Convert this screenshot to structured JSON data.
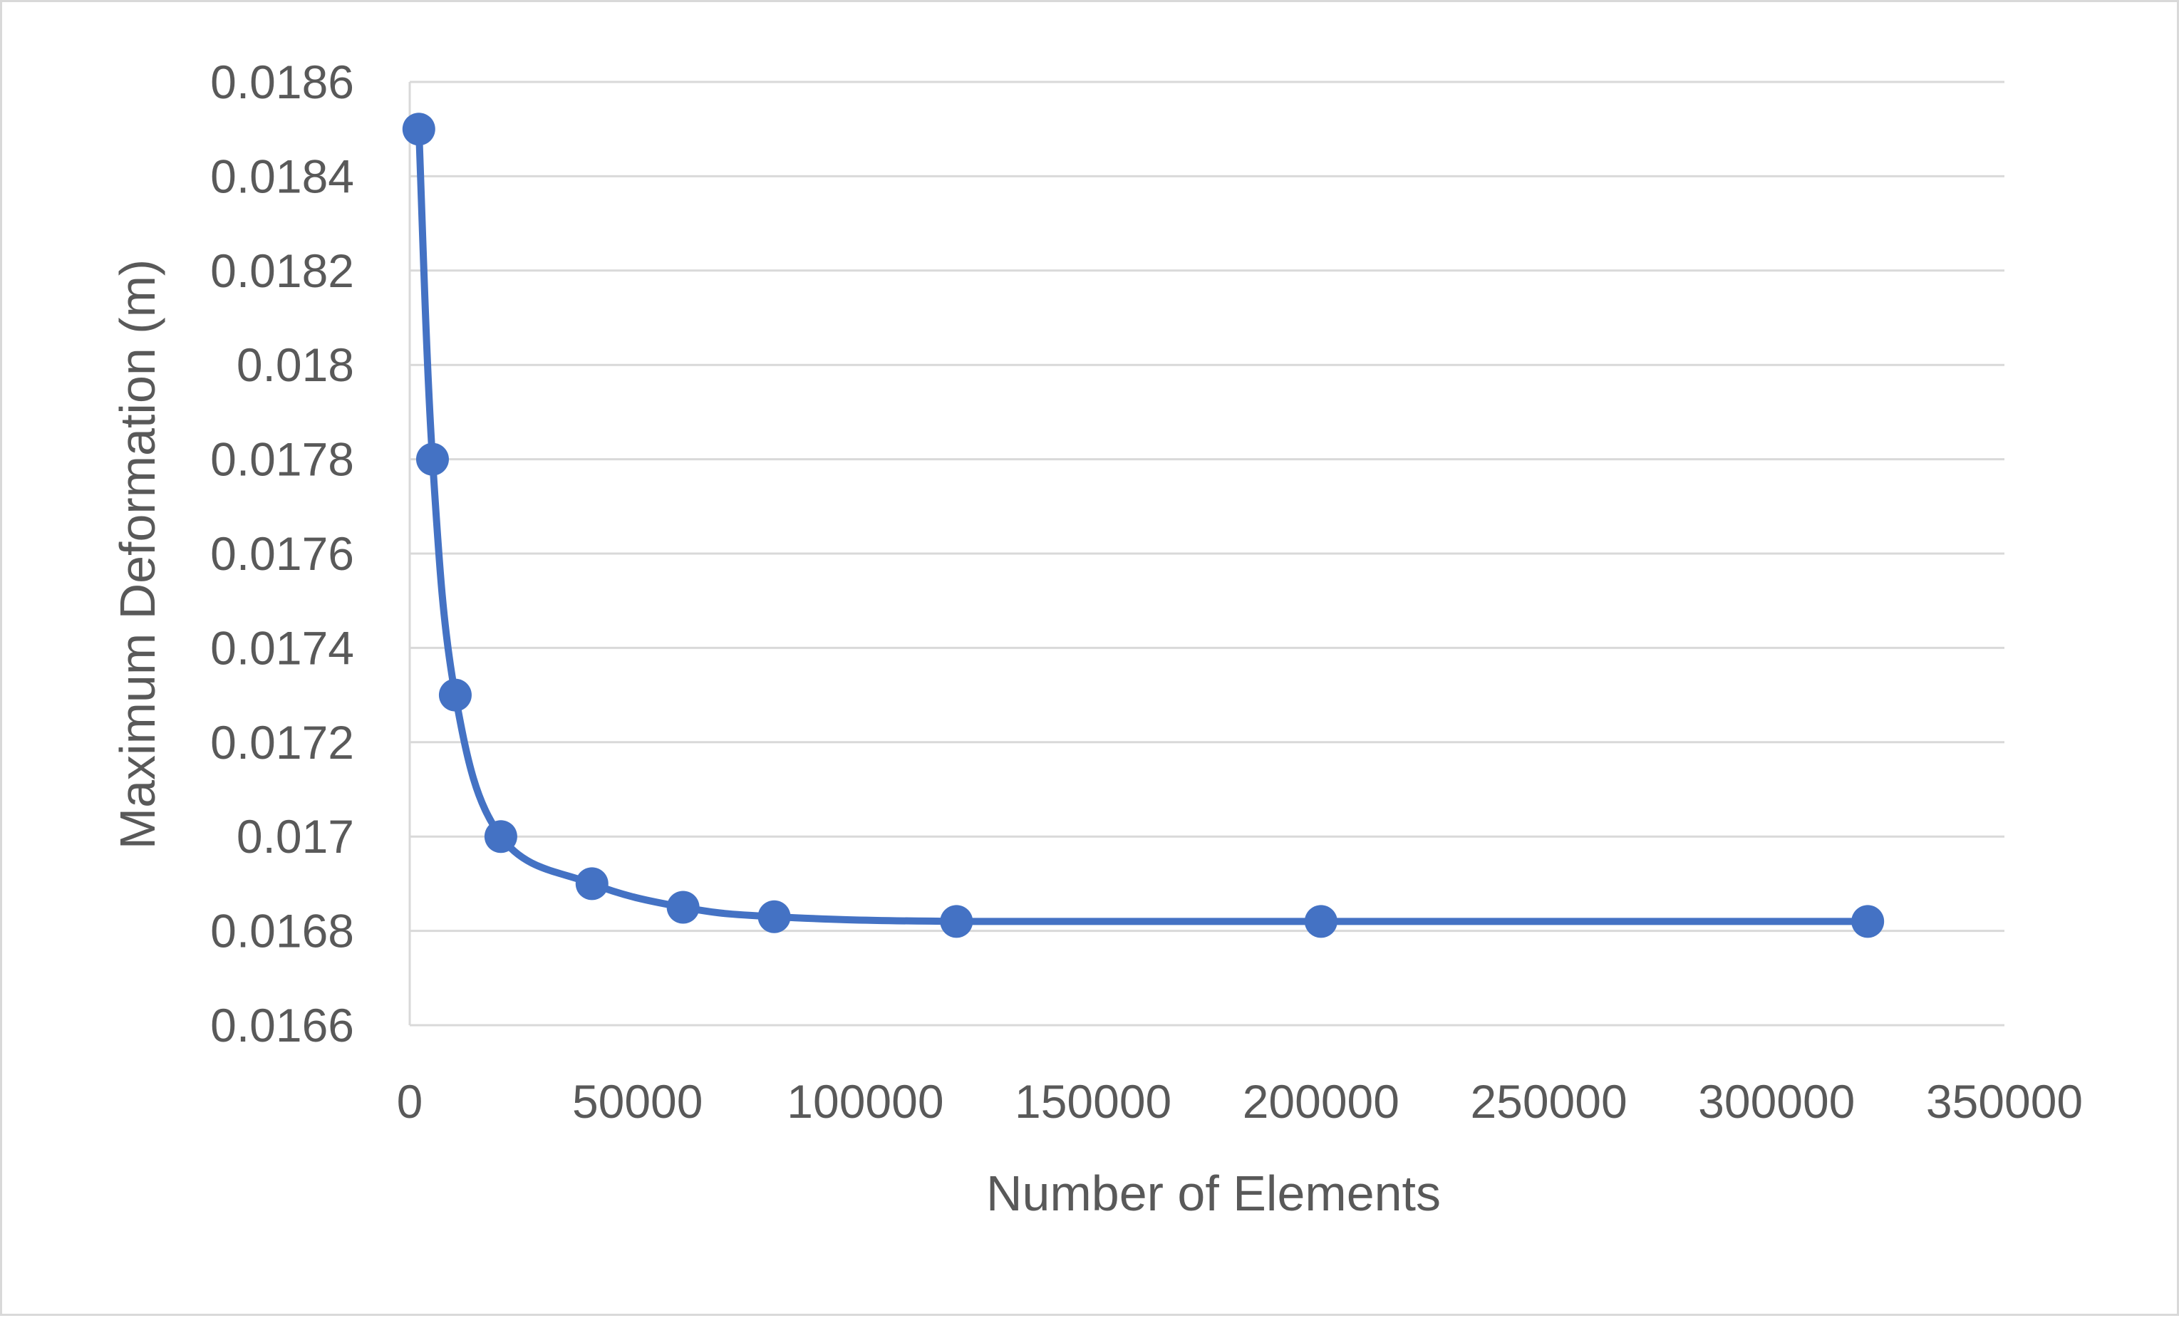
{
  "chart_data": {
    "type": "scatter",
    "title": "",
    "xlabel": "Number of Elements",
    "ylabel": "Maximum Deformation (m)",
    "xlim": [
      0,
      350000
    ],
    "ylim": [
      0.0166,
      0.0186
    ],
    "x_ticks": [
      "0",
      "50000",
      "100000",
      "150000",
      "200000",
      "250000",
      "300000",
      "350000"
    ],
    "y_ticks": [
      "0.0166",
      "0.0168",
      "0.017",
      "0.0172",
      "0.0174",
      "0.0176",
      "0.0178",
      "0.018",
      "0.0182",
      "0.0184",
      "0.0186"
    ],
    "grid": true,
    "legend": "none",
    "series": [
      {
        "color": "#4472c4",
        "marker": "circle",
        "line": "smooth",
        "x": [
          2000,
          5000,
          10000,
          20000,
          40000,
          60000,
          80000,
          120000,
          200000,
          320000
        ],
        "y": [
          0.0185,
          0.0178,
          0.0173,
          0.017,
          0.0169,
          0.01685,
          0.01683,
          0.01682,
          0.01682,
          0.01682
        ]
      }
    ]
  }
}
